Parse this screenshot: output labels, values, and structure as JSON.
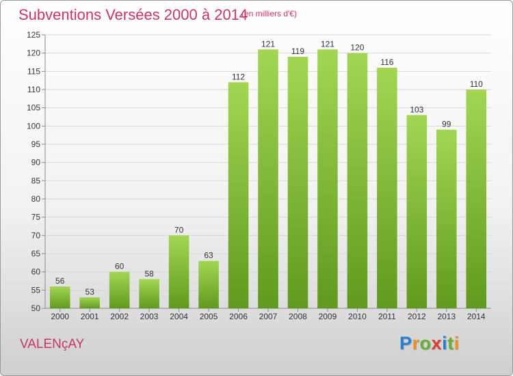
{
  "header": {
    "title": "Subventions Versées 2000 à 2014",
    "subtitle": "(en milliers d'€)"
  },
  "footer": {
    "place": "VALENçAY",
    "logo_letters": [
      {
        "char": "P",
        "color": "#2a7fd4"
      },
      {
        "char": "r",
        "color": "#f0901e"
      },
      {
        "char": "o",
        "color": "#66b032"
      },
      {
        "char": "x",
        "color": "#e03c31"
      },
      {
        "char": "i",
        "color": "#2a7fd4"
      },
      {
        "char": "t",
        "color": "#66b032"
      },
      {
        "char": "i",
        "color": "#f0901e"
      }
    ]
  },
  "chart_data": {
    "type": "bar",
    "categories": [
      "2000",
      "2001",
      "2002",
      "2003",
      "2004",
      "2005",
      "2006",
      "2007",
      "2008",
      "2009",
      "2010",
      "2011",
      "2012",
      "2013",
      "2014"
    ],
    "values": [
      56,
      53,
      60,
      58,
      70,
      63,
      112,
      121,
      119,
      121,
      120,
      116,
      103,
      99,
      110
    ],
    "ylim": [
      50,
      125
    ],
    "yticks": [
      50,
      55,
      60,
      65,
      70,
      75,
      80,
      85,
      90,
      95,
      100,
      105,
      110,
      115,
      120,
      125
    ],
    "grid": true,
    "bar_color_top": "#a3d652",
    "bar_color_bottom": "#5f9a1e"
  }
}
